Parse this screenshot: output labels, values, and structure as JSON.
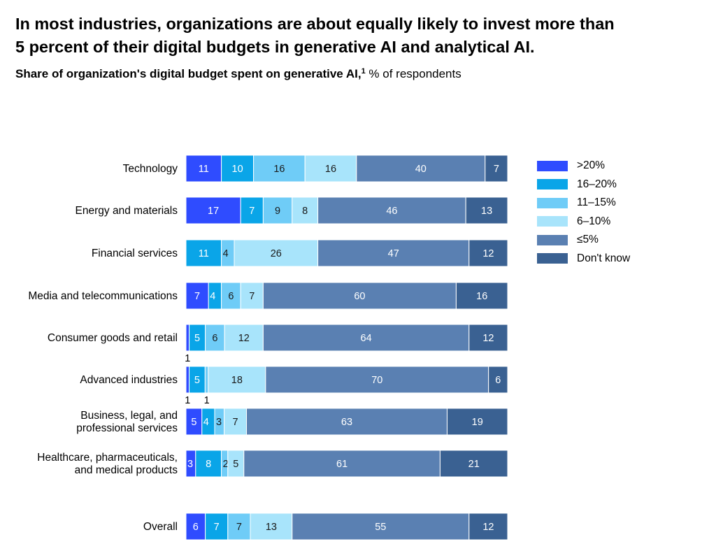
{
  "headline": {
    "line1": "In most industries, organizations are about equally likely to invest more than",
    "line2": "5 percent of their digital budgets in generative AI and analytical AI."
  },
  "subtitle": {
    "bold": "Share of organization's digital budget spent on generative AI,",
    "footnote_marker": "1",
    "normal": " % of respondents"
  },
  "colors": {
    ">20%": "#2f4cff",
    "16–20%": "#0aa5e8",
    "11–15%": "#6fccf7",
    "6–10%": "#a8e4fb",
    "≤5%": "#5a80b2",
    "Don't know": "#3a6192"
  },
  "chart_data": {
    "type": "bar",
    "orientation": "horizontal",
    "stacked": true,
    "xlim": [
      0,
      100
    ],
    "categories": [
      "Technology",
      "Energy and materials",
      "Financial services",
      "Media and telecommunications",
      "Consumer goods and retail",
      "Advanced industries",
      "Business, legal, and professional services",
      "Healthcare, pharmaceuticals, and medical products",
      "Overall"
    ],
    "category_lines": [
      [
        "Technology"
      ],
      [
        "Energy and materials"
      ],
      [
        "Financial services"
      ],
      [
        "Media and telecommunications"
      ],
      [
        "Consumer goods and retail"
      ],
      [
        "Advanced industries"
      ],
      [
        "Business, legal, and",
        "professional services"
      ],
      [
        "Healthcare, pharmaceuticals,",
        "and medical products"
      ],
      [
        "Overall"
      ]
    ],
    "series": [
      {
        "name": ">20%",
        "values": [
          11,
          17,
          0,
          7,
          1,
          1,
          5,
          3,
          6
        ]
      },
      {
        "name": "16–20%",
        "values": [
          10,
          7,
          11,
          4,
          5,
          5,
          4,
          8,
          7
        ]
      },
      {
        "name": "11–15%",
        "values": [
          16,
          9,
          4,
          6,
          6,
          1,
          3,
          2,
          7
        ]
      },
      {
        "name": "6–10%",
        "values": [
          16,
          8,
          26,
          7,
          12,
          18,
          7,
          5,
          13
        ]
      },
      {
        "name": "≤5%",
        "values": [
          40,
          46,
          47,
          60,
          64,
          70,
          63,
          61,
          55
        ]
      },
      {
        "name": "Don't know",
        "values": [
          7,
          13,
          12,
          16,
          12,
          6,
          19,
          21,
          12
        ]
      }
    ],
    "legend": {
      "position": "right",
      "entries": [
        ">20%",
        "16–20%",
        "11–15%",
        "6–10%",
        "≤5%",
        "Don't know"
      ]
    }
  }
}
